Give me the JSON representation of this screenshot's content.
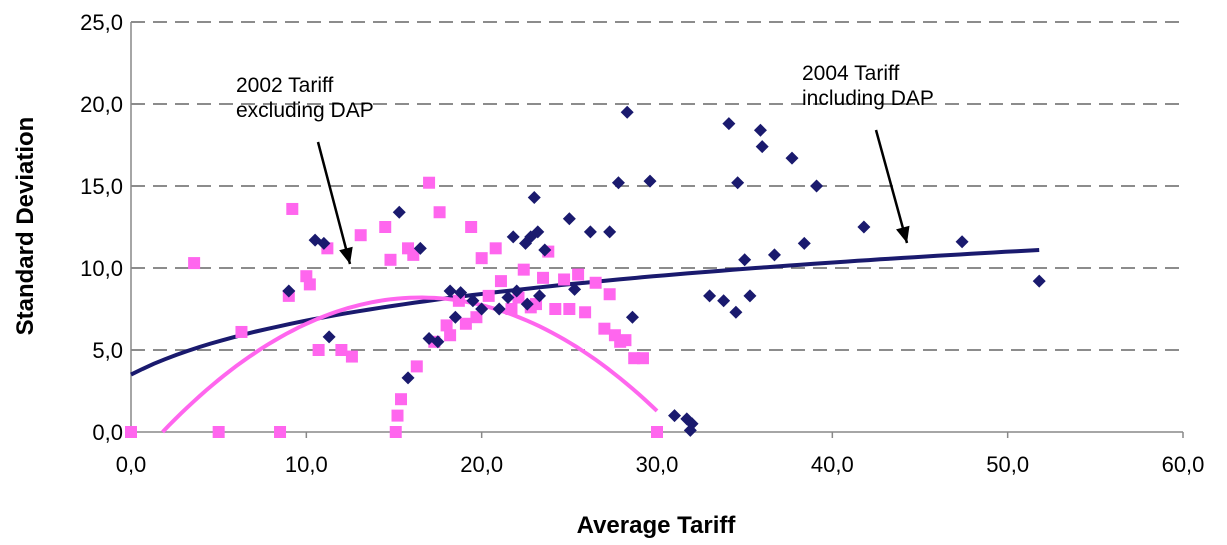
{
  "chart_data": {
    "type": "scatter",
    "xlabel": "Average Tariff",
    "ylabel": "Standard Deviation",
    "xlim": [
      0,
      60
    ],
    "ylim": [
      0,
      25
    ],
    "x_ticks": [
      "0,0",
      "10,0",
      "20,0",
      "30,0",
      "40,0",
      "50,0",
      "60,0"
    ],
    "y_ticks": [
      "0,0",
      "5,0",
      "10,0",
      "15,0",
      "20,0",
      "25,0"
    ],
    "grid": "horizontal-dashed",
    "annotations": [
      {
        "lines": [
          "2002 Tariff",
          "excluding DAP"
        ]
      },
      {
        "lines": [
          "2004 Tariff",
          "including DAP"
        ]
      }
    ],
    "series": [
      {
        "color": "#1a1a6e",
        "marker": "diamond",
        "points": [
          [
            9,
            8.6
          ],
          [
            10.5,
            11.7
          ],
          [
            11,
            11.5
          ],
          [
            11.3,
            5.8
          ],
          [
            15.3,
            13.4
          ],
          [
            15.8,
            3.3
          ],
          [
            16.5,
            11.2
          ],
          [
            17,
            5.7
          ],
          [
            17.5,
            5.5
          ],
          [
            18.2,
            8.6
          ],
          [
            18.5,
            7
          ],
          [
            18.8,
            8.5
          ],
          [
            19.5,
            8
          ],
          [
            20,
            7.5
          ],
          [
            21,
            7.5
          ],
          [
            21.5,
            8.2
          ],
          [
            21.8,
            11.9
          ],
          [
            22,
            8.6
          ],
          [
            22.5,
            11.5
          ],
          [
            22.6,
            7.8
          ],
          [
            22.8,
            11.9
          ],
          [
            23,
            14.3
          ],
          [
            23.2,
            12.2
          ],
          [
            23.3,
            8.3
          ],
          [
            23.6,
            11.1
          ],
          [
            25,
            13
          ],
          [
            25.3,
            8.7
          ],
          [
            26.2,
            12.2
          ],
          [
            27.3,
            12.2
          ],
          [
            27.8,
            15.2
          ],
          [
            28.3,
            19.5
          ],
          [
            28.6,
            7
          ],
          [
            29.6,
            15.3
          ],
          [
            31,
            1
          ],
          [
            31.7,
            0.8
          ],
          [
            32,
            0.5
          ],
          [
            31.9,
            0.1
          ],
          [
            33,
            8.3
          ],
          [
            33.8,
            8
          ],
          [
            34.1,
            18.8
          ],
          [
            34.5,
            7.3
          ],
          [
            34.6,
            15.2
          ],
          [
            35,
            10.5
          ],
          [
            35.3,
            8.3
          ],
          [
            35.9,
            18.4
          ],
          [
            36,
            17.4
          ],
          [
            36.7,
            10.8
          ],
          [
            37.7,
            16.7
          ],
          [
            38.4,
            11.5
          ],
          [
            39.1,
            15
          ],
          [
            41.8,
            12.5
          ],
          [
            47.4,
            11.6
          ],
          [
            51.8,
            9.2
          ]
        ],
        "trend": {
          "type": "log-fit",
          "x_range": [
            0,
            51.8
          ],
          "y_range": [
            3.5,
            11.1
          ]
        }
      },
      {
        "color": "#ff66ee",
        "marker": "square",
        "points": [
          [
            0,
            0
          ],
          [
            3.6,
            10.3
          ],
          [
            5,
            0
          ],
          [
            6.3,
            6.1
          ],
          [
            8.5,
            0
          ],
          [
            9,
            8.3
          ],
          [
            9.2,
            13.6
          ],
          [
            10,
            9.5
          ],
          [
            10.2,
            9
          ],
          [
            10.7,
            5
          ],
          [
            11.2,
            11.2
          ],
          [
            12,
            5
          ],
          [
            12.6,
            4.6
          ],
          [
            13.1,
            12
          ],
          [
            14.5,
            12.5
          ],
          [
            14.8,
            10.5
          ],
          [
            15.1,
            0
          ],
          [
            15.2,
            1
          ],
          [
            15.4,
            2
          ],
          [
            15.8,
            11.2
          ],
          [
            16.1,
            10.8
          ],
          [
            16.3,
            4
          ],
          [
            17,
            15.2
          ],
          [
            17.3,
            5.5
          ],
          [
            17.6,
            13.4
          ],
          [
            18,
            6.5
          ],
          [
            18.2,
            5.9
          ],
          [
            18.7,
            8
          ],
          [
            19.1,
            6.6
          ],
          [
            19.4,
            12.5
          ],
          [
            19.7,
            7
          ],
          [
            20,
            10.6
          ],
          [
            20.4,
            8.3
          ],
          [
            20.8,
            11.2
          ],
          [
            21.1,
            9.2
          ],
          [
            21.7,
            7.5
          ],
          [
            22.1,
            8.2
          ],
          [
            22.4,
            9.9
          ],
          [
            22.8,
            7.6
          ],
          [
            23.1,
            7.8
          ],
          [
            23.5,
            9.4
          ],
          [
            23.8,
            11
          ],
          [
            24.2,
            7.5
          ],
          [
            24.7,
            9.3
          ],
          [
            25,
            7.5
          ],
          [
            25.5,
            9.6
          ],
          [
            25.9,
            7.3
          ],
          [
            26.5,
            9.1
          ],
          [
            27,
            6.3
          ],
          [
            27.3,
            8.4
          ],
          [
            27.6,
            5.9
          ],
          [
            27.9,
            5.5
          ],
          [
            28.2,
            5.6
          ],
          [
            28.7,
            4.5
          ],
          [
            29.2,
            4.5
          ],
          [
            30,
            0
          ]
        ],
        "trend": {
          "type": "polynomial-fit",
          "x_range": [
            1.8,
            30
          ],
          "y_range": [
            0,
            8.2
          ]
        }
      }
    ]
  }
}
